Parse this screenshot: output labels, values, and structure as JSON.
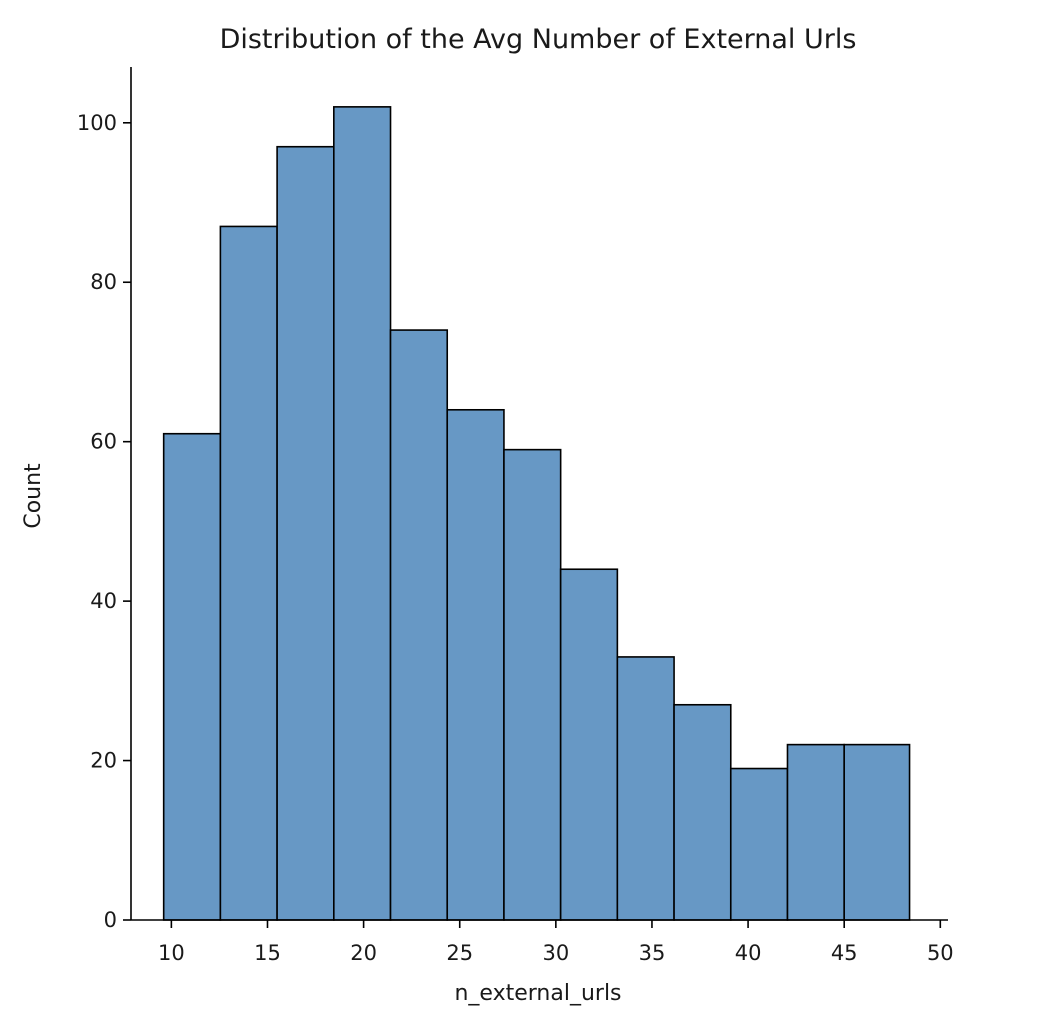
{
  "chart_data": {
    "type": "bar",
    "title": "Distribution of the Avg Number of External Urls",
    "xlabel": "n_external_urls",
    "ylabel": "Count",
    "bin_edges": [
      9.6,
      12.55,
      15.5,
      18.45,
      21.4,
      24.35,
      27.3,
      30.25,
      33.2,
      36.15,
      39.1,
      42.05,
      45.0,
      48.4
    ],
    "values": [
      61,
      87,
      97,
      102,
      74,
      64,
      59,
      44,
      33,
      27,
      19,
      22,
      22
    ],
    "xlim": [
      7.9,
      50.4
    ],
    "ylim": [
      0,
      107
    ],
    "xticks": [
      10,
      15,
      20,
      25,
      30,
      35,
      40,
      45,
      50
    ],
    "yticks": [
      0,
      20,
      40,
      60,
      80,
      100
    ],
    "bar_color": "#6798c5",
    "edge_color": "#000000",
    "grid": false
  }
}
